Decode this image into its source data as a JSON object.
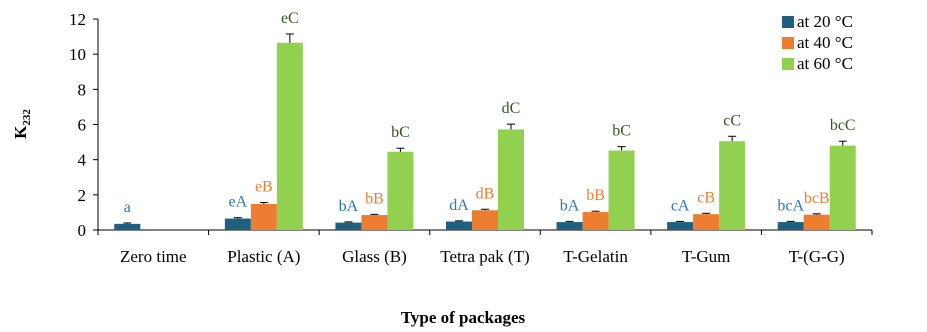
{
  "chart_data": {
    "type": "bar",
    "xlabel": "Type of packages",
    "ylabel": "K",
    "ylabel_subscript": "232",
    "ylim": [
      0,
      12
    ],
    "yticks": [
      0,
      2,
      4,
      6,
      8,
      10,
      12
    ],
    "categories": [
      "Zero time",
      "Plastic (A)",
      "Glass (B)",
      "Tetra pak (T)",
      "T-Gelatin",
      "T-Gum",
      "T-(G-G)"
    ],
    "grid": false,
    "legend_position": "top-right",
    "series": [
      {
        "name": "at 20 °C",
        "color": "#1f5f7f",
        "label_color": "#2e75b6",
        "values": [
          0.35,
          0.65,
          0.42,
          0.48,
          0.45,
          0.45,
          0.45
        ],
        "errors": [
          0.05,
          0.05,
          0.04,
          0.04,
          0.04,
          0.04,
          0.04
        ],
        "labels": [
          "a",
          "eA",
          "bA",
          "dA",
          "bA",
          "cA",
          "bcA"
        ]
      },
      {
        "name": "at 40 °C",
        "color": "#ed7d31",
        "label_color": "#ed7d31",
        "values": [
          null,
          1.48,
          0.85,
          1.12,
          1.02,
          0.9,
          0.87
        ],
        "errors": [
          null,
          0.08,
          0.04,
          0.06,
          0.05,
          0.05,
          0.05
        ],
        "labels": [
          "",
          "eB",
          "bB",
          "dB",
          "bB",
          "cB",
          "bcB"
        ]
      },
      {
        "name": "at 60 °C",
        "color": "#92d050",
        "label_color": "#375623",
        "values": [
          null,
          10.65,
          4.45,
          5.72,
          4.52,
          5.05,
          4.8
        ],
        "errors": [
          null,
          0.5,
          0.2,
          0.3,
          0.22,
          0.28,
          0.25
        ],
        "labels": [
          "",
          "eC",
          "bC",
          "dC",
          "bC",
          "cC",
          "bcC"
        ]
      }
    ]
  }
}
